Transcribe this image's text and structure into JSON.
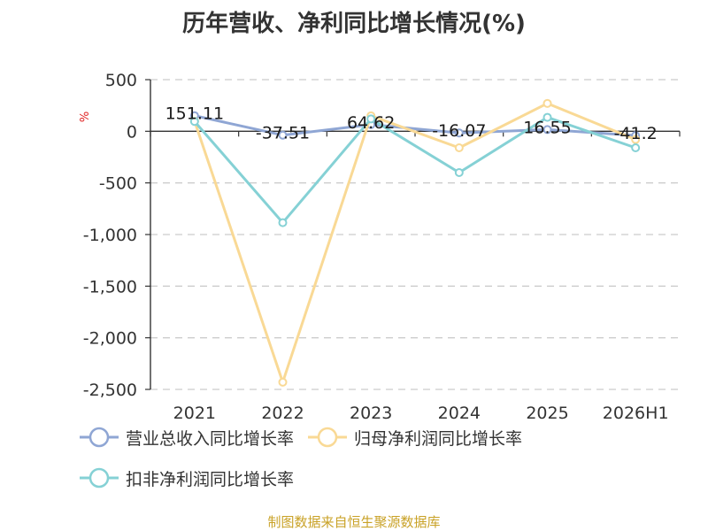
{
  "title": "历年营收、净利同比增长情况(%)",
  "source": "制图数据来自恒生聚源数据库",
  "chart_data": {
    "type": "line",
    "title": "历年营收、净利同比增长情况(%)",
    "y_unit": "%",
    "ylim": [
      -2500,
      500
    ],
    "y_ticks": [
      500,
      0,
      -500,
      -1000,
      -1500,
      -2000,
      -2500
    ],
    "y_tick_labels": [
      "500",
      "0",
      "-500",
      "-1,000",
      "-1,500",
      "-2,000",
      "-2,500"
    ],
    "categories": [
      "2021",
      "2022",
      "2023",
      "2024",
      "2025",
      "2026H1"
    ],
    "grid": true,
    "legend_position": "bottom",
    "series": [
      {
        "name": "营业总收入同比增长率",
        "color": "#8fa6d4",
        "values": [
          151.11,
          -37.51,
          64.62,
          -16.07,
          16.55,
          -41.2
        ],
        "labels": [
          "151.11",
          "-37.51",
          "64.62",
          "-16.07",
          "16.55",
          "-41.2"
        ]
      },
      {
        "name": "归母净利润同比增长率",
        "color": "#f9d995",
        "values": [
          98,
          -2430,
          150,
          -160,
          270,
          -80
        ],
        "labels": []
      },
      {
        "name": "扣非净利润同比增长率",
        "color": "#85d1d5",
        "values": [
          95,
          -885,
          120,
          -400,
          135,
          -160
        ],
        "labels": []
      }
    ]
  }
}
